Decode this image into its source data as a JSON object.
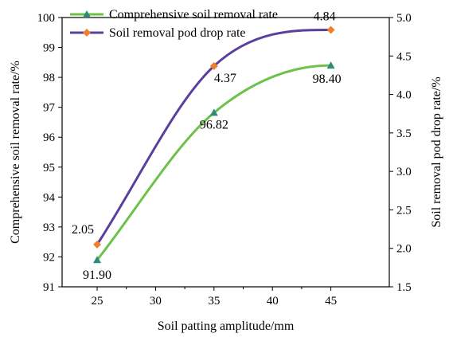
{
  "chart_data": {
    "type": "line",
    "xlabel": "Soil patting amplitude/mm",
    "ylabel_left": "Comprehensive soil removal rate/%",
    "ylabel_right": "Soil removal pod drop rate/%",
    "x_ticks": [
      "25",
      "30",
      "35",
      "40",
      "45"
    ],
    "xlim": [
      22,
      50
    ],
    "y_left_ticks": [
      "91",
      "92",
      "93",
      "94",
      "95",
      "96",
      "97",
      "98",
      "99",
      "100"
    ],
    "ylim_left": [
      91,
      100
    ],
    "y_right_ticks": [
      "1.5",
      "2.0",
      "2.5",
      "3.0",
      "3.5",
      "4.0",
      "4.5",
      "5.0"
    ],
    "ylim_right": [
      1.5,
      5.0
    ],
    "grid": false,
    "legend_position": "top-left",
    "x": [
      25,
      35,
      45
    ],
    "series": [
      {
        "name": "Comprehensive soil removal rate",
        "axis": "left",
        "values": [
          91.9,
          96.82,
          98.4
        ],
        "labels": [
          "91.90",
          "96.82",
          "98.40"
        ],
        "line_color": "#6cc24a",
        "marker": "triangle",
        "marker_color": "#2e8b7a"
      },
      {
        "name": "Soil removal pod drop rate",
        "axis": "right",
        "values": [
          2.05,
          4.37,
          4.84
        ],
        "labels": [
          "2.05",
          "4.37",
          "4.84"
        ],
        "line_color": "#5b3f9e",
        "marker": "diamond",
        "marker_color": "#f07f2a"
      }
    ]
  }
}
